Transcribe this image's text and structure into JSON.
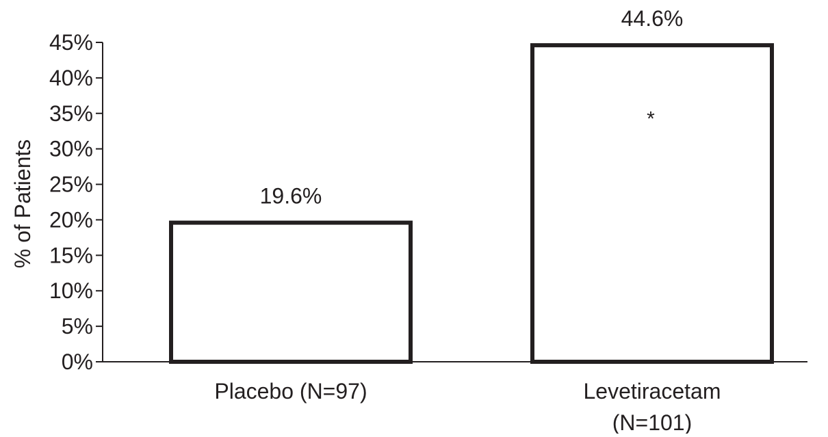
{
  "chart_data": {
    "type": "bar",
    "categories": [
      "Placebo (N=97)",
      "Levetiracetam (N=101)"
    ],
    "category_lines": [
      [
        "Placebo (N=97)"
      ],
      [
        "Levetiracetam",
        "(N=101)"
      ]
    ],
    "values": [
      19.6,
      44.6
    ],
    "value_labels": [
      "19.6%",
      "44.6%"
    ],
    "ylabel": "% of Patients",
    "xlabel": "",
    "title": "",
    "ylim": [
      0,
      45
    ],
    "yticks": [
      0,
      5,
      10,
      15,
      20,
      25,
      30,
      35,
      40,
      45
    ],
    "ytick_labels": [
      "0%",
      "5%",
      "10%",
      "15%",
      "20%",
      "25%",
      "30%",
      "35%",
      "40%",
      "45%"
    ],
    "annotations": [
      {
        "category_index": 1,
        "text": "*"
      }
    ],
    "grid": false,
    "legend": "none",
    "colors": {
      "bar_fill": "#ffffff",
      "bar_stroke": "#231f20",
      "axis": "#231f20",
      "text": "#231f20"
    }
  }
}
